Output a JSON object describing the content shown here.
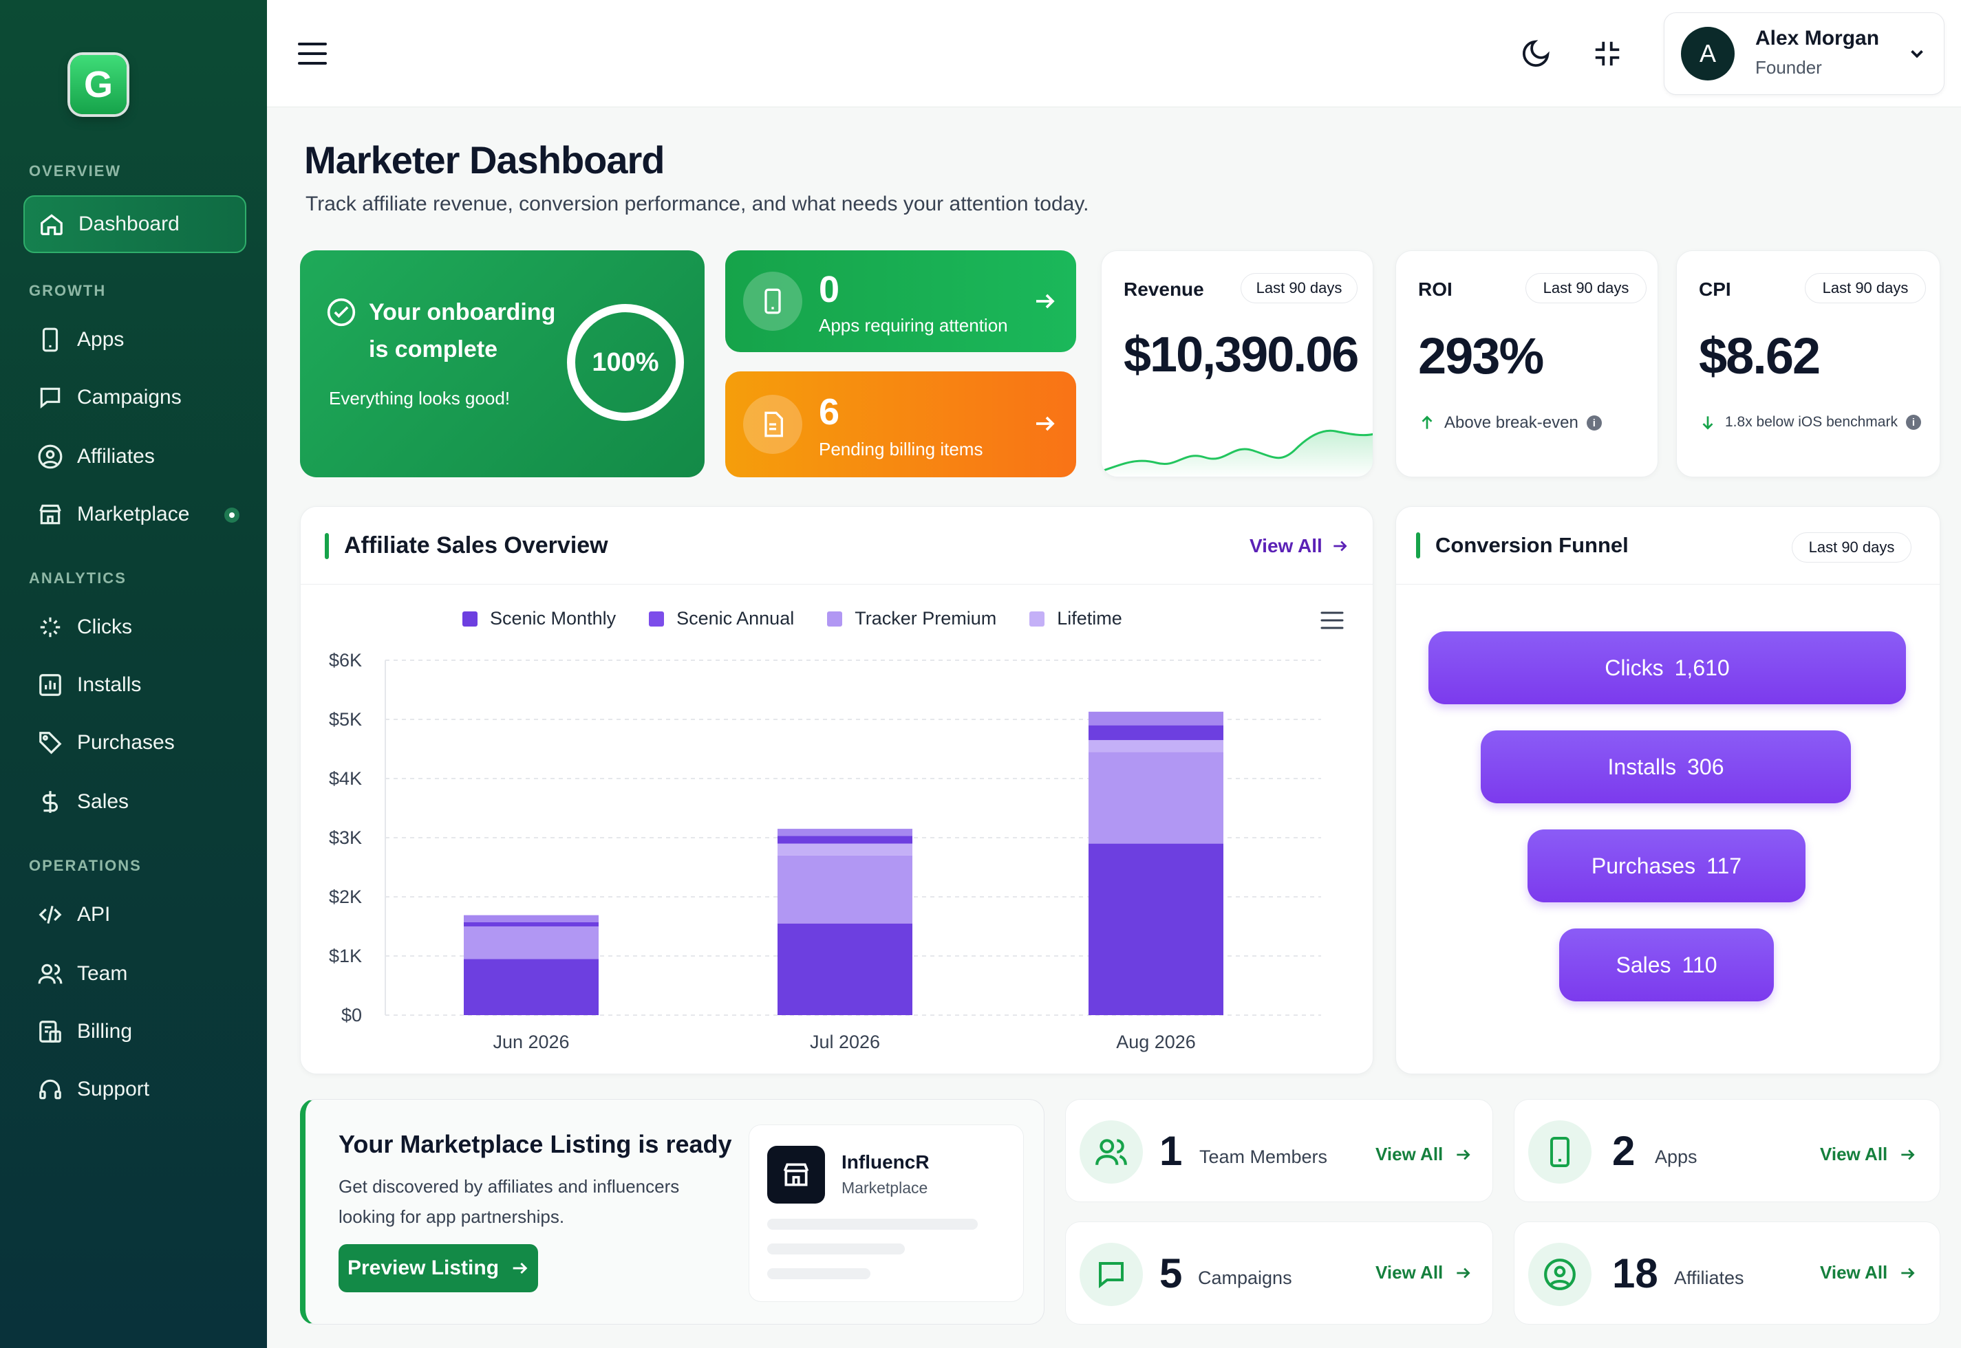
{
  "sidebar": {
    "logo_letter": "G",
    "sections": {
      "overview": "OVERVIEW",
      "growth": "GROWTH",
      "analytics": "ANALYTICS",
      "operations": "OPERATIONS"
    },
    "items": {
      "dashboard": "Dashboard",
      "apps": "Apps",
      "campaigns": "Campaigns",
      "affiliates": "Affiliates",
      "marketplace": "Marketplace",
      "clicks": "Clicks",
      "installs": "Installs",
      "purchases": "Purchases",
      "sales": "Sales",
      "api": "API",
      "team": "Team",
      "billing": "Billing",
      "support": "Support"
    },
    "active": "dashboard"
  },
  "user": {
    "initial": "A",
    "name": "Alex Morgan",
    "role": "Founder"
  },
  "page": {
    "title": "Marketer Dashboard",
    "subtitle": "Track affiliate revenue, conversion performance, and what needs your attention today."
  },
  "onboarding": {
    "title_line1": "Your onboarding",
    "title_line2": "is complete",
    "status": "Everything looks good!",
    "progress_label": "100%",
    "progress": 1.0
  },
  "attention": {
    "apps": {
      "count": "0",
      "label": "Apps requiring attention"
    },
    "billing": {
      "count": "6",
      "label": "Pending billing items"
    }
  },
  "stats": {
    "revenue": {
      "label": "Revenue",
      "period": "Last 90 days",
      "value": "$10,390.06"
    },
    "roi": {
      "label": "ROI",
      "period": "Last 90 days",
      "value": "293%",
      "note": "Above break-even"
    },
    "cpi": {
      "label": "CPI",
      "period": "Last 90 days",
      "value": "$8.62",
      "note": "1.8x below iOS benchmark"
    }
  },
  "sales_overview": {
    "title": "Affiliate Sales Overview",
    "view_all": "View All"
  },
  "chart_data": {
    "type": "bar",
    "stacked": true,
    "categories": [
      "Jun 2026",
      "Jul 2026",
      "Aug 2026"
    ],
    "series": [
      {
        "name": "Scenic Monthly",
        "color": "#6d3fe0",
        "values": [
          950,
          1550,
          2900
        ]
      },
      {
        "name": "Scenic Annual",
        "color": "#7c4dea",
        "values": [
          0,
          0,
          0
        ]
      },
      {
        "name": "Tracker Premium",
        "color": "#b197f3",
        "values": [
          550,
          1150,
          1550
        ]
      },
      {
        "name": "Lifetime",
        "color": "#c4b0f7",
        "values": [
          0,
          200,
          200
        ]
      }
    ],
    "top_band": [
      {
        "color": "#6d3fe0",
        "values": [
          70,
          130,
          250
        ]
      },
      {
        "color": "#a688f0",
        "values": [
          120,
          120,
          230
        ]
      }
    ],
    "yticks": [
      "$6K",
      "$5K",
      "$4K",
      "$3K",
      "$2K",
      "$1K",
      "$0"
    ],
    "ylim": [
      0,
      6000
    ],
    "grid": true,
    "legend": "top"
  },
  "funnel": {
    "title": "Conversion Funnel",
    "period": "Last 90 days",
    "steps": [
      {
        "label": "Clicks",
        "value": "1,610"
      },
      {
        "label": "Installs",
        "value": "306"
      },
      {
        "label": "Purchases",
        "value": "117"
      },
      {
        "label": "Sales",
        "value": "110"
      }
    ]
  },
  "marketplace": {
    "title": "Your Marketplace Listing is ready",
    "desc": "Get discovered by affiliates and influencers looking for app partnerships.",
    "button": "Preview Listing",
    "app_name": "InfluencR",
    "app_sub": "Marketplace"
  },
  "summary": {
    "team": {
      "count": "1",
      "label": "Team Members",
      "link": "View All"
    },
    "apps": {
      "count": "2",
      "label": "Apps",
      "link": "View All"
    },
    "campaigns": {
      "count": "5",
      "label": "Campaigns",
      "link": "View All"
    },
    "affiliates": {
      "count": "18",
      "label": "Affiliates",
      "link": "View All"
    }
  }
}
